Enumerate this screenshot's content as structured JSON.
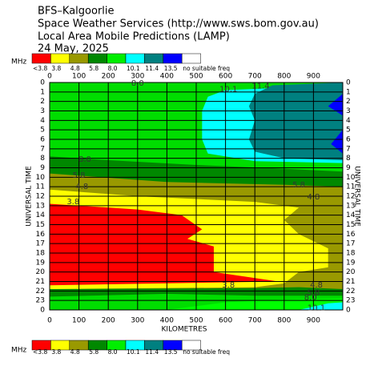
{
  "chart_data": {
    "type": "contour",
    "title": "BFS–Kalgoorlie",
    "subtitle": "Space Weather Services (http://www.sws.bom.gov.au)",
    "subtitle2": "Local Area Mobile Predictions (LAMP)",
    "date": "24 May, 2025",
    "xlabel": "KILOMETRES",
    "ylabel": "UNIVERSAL TIME",
    "xlim": [
      0,
      1000
    ],
    "xticks": [
      0,
      100,
      200,
      300,
      400,
      500,
      600,
      700,
      800,
      900
    ],
    "ylim": [
      0,
      24
    ],
    "yticks": [
      0,
      1,
      2,
      3,
      4,
      5,
      6,
      7,
      8,
      9,
      10,
      11,
      12,
      13,
      14,
      15,
      16,
      17,
      18,
      19,
      20,
      21,
      22,
      23,
      {
        "value": 24,
        "label": "0"
      }
    ],
    "grid": true,
    "legend": {
      "unit": "MHz",
      "colors": [
        "#ff0000",
        "#ffff00",
        "#999900",
        "#008800",
        "#00ee00",
        "#00ffff",
        "#008080",
        "#0000ff",
        "#ffffff"
      ],
      "labels": [
        "<3.8",
        "3.8",
        "4.8",
        "5.8",
        "8.0",
        "10.1",
        "11.4",
        "13.5",
        "no suitable freq"
      ]
    },
    "background": "#008800",
    "regions": [
      {
        "color": "#00dd00",
        "points": [
          [
            0,
            0
          ],
          [
            1000,
            0
          ],
          [
            1000,
            9.4
          ],
          [
            800,
            9.1
          ],
          [
            500,
            8.7
          ],
          [
            200,
            8.2
          ],
          [
            0,
            7.8
          ]
        ]
      },
      {
        "color": "#00ffff",
        "points": [
          [
            540,
            1.5
          ],
          [
            600,
            0.8
          ],
          [
            1000,
            0.3
          ],
          [
            1000,
            8.5
          ],
          [
            700,
            8.3
          ],
          [
            540,
            7.5
          ],
          [
            520,
            6
          ],
          [
            520,
            3
          ]
        ]
      },
      {
        "color": "#008080",
        "points": [
          [
            700,
            1.2
          ],
          [
            760,
            0.3
          ],
          [
            1000,
            0
          ],
          [
            1000,
            8.2
          ],
          [
            800,
            8
          ],
          [
            700,
            7.3
          ],
          [
            680,
            6
          ],
          [
            700,
            4
          ],
          [
            680,
            2.5
          ]
        ]
      },
      {
        "color": "#0000ff",
        "points": [
          [
            1000,
            1.2
          ],
          [
            950,
            2.5
          ],
          [
            1000,
            3.5
          ]
        ]
      },
      {
        "color": "#0000ff",
        "points": [
          [
            1000,
            5
          ],
          [
            960,
            6.5
          ],
          [
            1000,
            7.5
          ]
        ]
      },
      {
        "color": "#999900",
        "points": [
          [
            0,
            9.6
          ],
          [
            400,
            10.5
          ],
          [
            800,
            10.8
          ],
          [
            1000,
            11
          ],
          [
            1000,
            21.8
          ],
          [
            850,
            21.6
          ],
          [
            700,
            21.7
          ],
          [
            0,
            21.8
          ]
        ]
      },
      {
        "color": "#ffff00",
        "points": [
          [
            0,
            11.3
          ],
          [
            300,
            12
          ],
          [
            700,
            12.6
          ],
          [
            850,
            13.2
          ],
          [
            800,
            14.5
          ],
          [
            850,
            16
          ],
          [
            950,
            17.5
          ],
          [
            950,
            19.5
          ],
          [
            850,
            20
          ],
          [
            800,
            21.2
          ],
          [
            700,
            21.6
          ],
          [
            0,
            21.8
          ]
        ]
      },
      {
        "color": "#ff0000",
        "points": [
          [
            0,
            12.8
          ],
          [
            300,
            13.4
          ],
          [
            450,
            14
          ],
          [
            520,
            15.5
          ],
          [
            470,
            16.5
          ],
          [
            560,
            17.3
          ],
          [
            560,
            20
          ],
          [
            780,
            21
          ],
          [
            0,
            21.4
          ]
        ]
      },
      {
        "color": "#00dd00",
        "points": [
          [
            0,
            22.6
          ],
          [
            400,
            22.3
          ],
          [
            700,
            22.5
          ],
          [
            1000,
            22.5
          ],
          [
            1000,
            24
          ],
          [
            0,
            24
          ]
        ]
      },
      {
        "color": "#00ff00",
        "points": [
          [
            400,
            24
          ],
          [
            600,
            23.2
          ],
          [
            800,
            22.9
          ],
          [
            1000,
            22.8
          ],
          [
            1000,
            24
          ]
        ]
      },
      {
        "color": "#00ffff",
        "points": [
          [
            850,
            24
          ],
          [
            950,
            23.3
          ],
          [
            1000,
            23.2
          ],
          [
            1000,
            24
          ]
        ]
      }
    ],
    "contour_labels": [
      {
        "text": "8.0",
        "x": 300,
        "y": 0.1
      },
      {
        "text": "10.1",
        "x": 610,
        "y": 0.7
      },
      {
        "text": "11.4",
        "x": 720,
        "y": 0.4
      },
      {
        "text": "8.0",
        "x": 120,
        "y": 8.1
      },
      {
        "text": "5.8",
        "x": 100,
        "y": 9.8
      },
      {
        "text": "4.8",
        "x": 110,
        "y": 11
      },
      {
        "text": "3.8",
        "x": 80,
        "y": 12.6
      },
      {
        "text": "5.8",
        "x": 850,
        "y": 10.8
      },
      {
        "text": "4.8",
        "x": 900,
        "y": 12.1
      },
      {
        "text": "3.8",
        "x": 610,
        "y": 21.4
      },
      {
        "text": "4.8",
        "x": 910,
        "y": 21.4
      },
      {
        "text": "5.8",
        "x": 900,
        "y": 22.2
      },
      {
        "text": "8.0",
        "x": 890,
        "y": 22.7
      },
      {
        "text": "10.1",
        "x": 910,
        "y": 23.8
      }
    ]
  }
}
